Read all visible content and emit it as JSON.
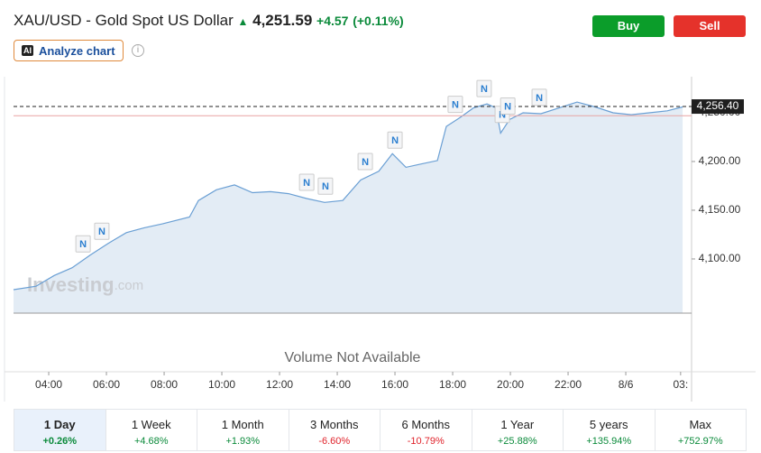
{
  "header": {
    "title": "XAU/USD - Gold Spot US Dollar",
    "price": "4,251.59",
    "change": "+4.57",
    "change_pct": "(+0.11%)",
    "analyze": "Analyze chart",
    "ai_badge": "AI",
    "info": "i",
    "buy": "Buy",
    "sell": "Sell"
  },
  "chart_data": {
    "type": "area",
    "color": "#6a9fd4",
    "fill": "#e3ecf5",
    "x": [
      2.78,
      3.56,
      4.19,
      4.81,
      5.44,
      6.06,
      6.69,
      7.31,
      7.94,
      8.88,
      9.19,
      9.81,
      10.44,
      11.06,
      11.69,
      12.31,
      12.94,
      13.56,
      14.19,
      14.81,
      15.44,
      15.91,
      16.38,
      16.84,
      17.47,
      17.78,
      18.25,
      18.72,
      19.19,
      19.5,
      19.66,
      19.97,
      20.44,
      21.06,
      21.69,
      22.31,
      22.94,
      23.56,
      24.19,
      24.81,
      25.44,
      25.97
    ],
    "values": [
      4068.5,
      4072,
      4083,
      4091,
      4104,
      4116,
      4127,
      4132,
      4136,
      4143,
      4160,
      4171,
      4176,
      4168,
      4169,
      4167,
      4162,
      4158,
      4160,
      4181,
      4190,
      4208,
      4194,
      4197,
      4201,
      4236,
      4245,
      4255,
      4259,
      4255,
      4229,
      4243,
      4250,
      4249,
      4255,
      4261,
      4256,
      4250,
      4248,
      4250,
      4252,
      4256
    ],
    "xlim": [
      2.78,
      26.28
    ],
    "ylim": [
      4044.4,
      4287
    ],
    "xticks": [
      {
        "value": 4,
        "label": "04:00"
      },
      {
        "value": 6,
        "label": "06:00"
      },
      {
        "value": 8,
        "label": "08:00"
      },
      {
        "value": 10,
        "label": "10:00"
      },
      {
        "value": 12,
        "label": "12:00"
      },
      {
        "value": 14,
        "label": "14:00"
      },
      {
        "value": 16,
        "label": "16:00"
      },
      {
        "value": 18,
        "label": "18:00"
      },
      {
        "value": 20,
        "label": "20:00"
      },
      {
        "value": 22,
        "label": "22:00"
      },
      {
        "value": 24,
        "label": "8/6"
      },
      {
        "value": 25.9,
        "label": "03:"
      }
    ],
    "yticks": [
      {
        "value": 4100,
        "label": "4,100.00"
      },
      {
        "value": 4150,
        "label": "4,150.00"
      },
      {
        "value": 4200,
        "label": "4,200.00"
      },
      {
        "value": 4250,
        "label": "4,250.00"
      }
    ],
    "last_value": {
      "value": 4256.4,
      "label": "4,256.40"
    },
    "reference_line": 4247,
    "news_label": "N",
    "news_x": [
      5.19,
      5.84,
      12.94,
      13.59,
      14.97,
      16,
      18.09,
      19.09,
      19.72,
      19.91,
      21
    ],
    "watermark": "Investing",
    "watermark_suffix": ".com",
    "volume_note": "Volume Not Available"
  },
  "periods": [
    {
      "label": "1 Day",
      "change": "+0.26%"
    },
    {
      "label": "1 Week",
      "change": "+4.68%"
    },
    {
      "label": "1 Month",
      "change": "+1.93%"
    },
    {
      "label": "3 Months",
      "change": "-6.60%"
    },
    {
      "label": "6 Months",
      "change": "-10.79%"
    },
    {
      "label": "1 Year",
      "change": "+25.88%"
    },
    {
      "label": "5 years",
      "change": "+135.94%"
    },
    {
      "label": "Max",
      "change": "+752.97%"
    }
  ]
}
